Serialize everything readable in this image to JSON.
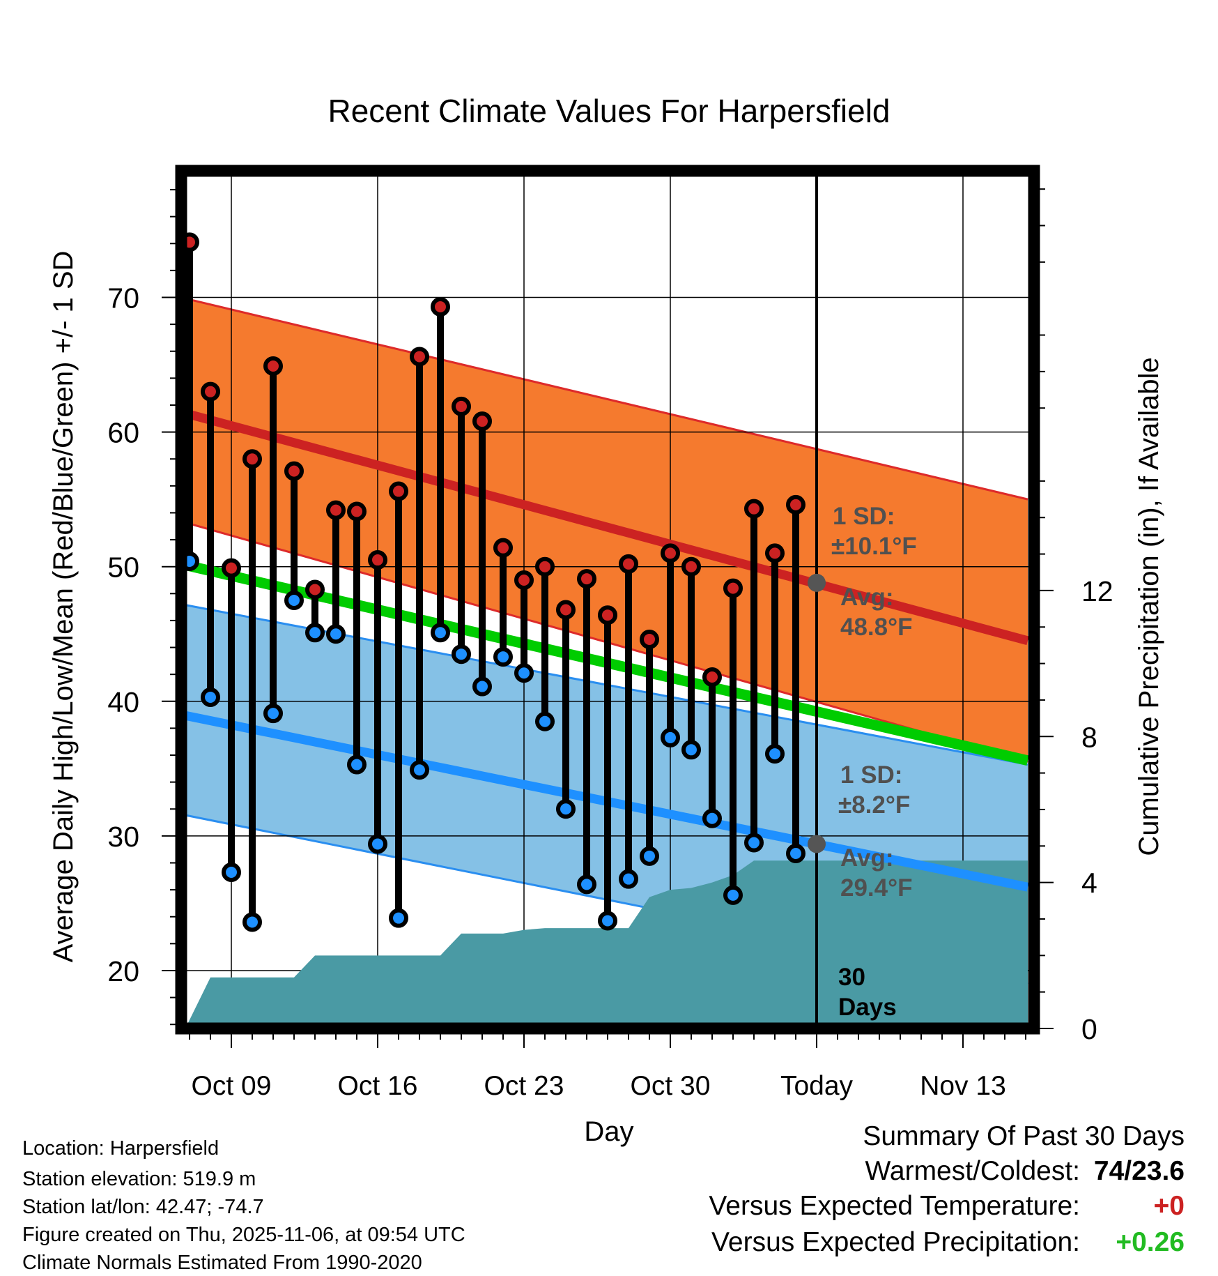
{
  "chart_data": {
    "type": "line",
    "title": "Recent Climate Values For Harpersfield",
    "xlabel": "Day",
    "ylabel_left": "Average Daily High/Low/Mean (Red/Blue/Green) +/- 1 SD",
    "ylabel_right": "Cumulative Precipitation (in), If Available",
    "x_day_index_ref": "Oct 09 = 0",
    "xlim": [
      -2.4,
      38.4
    ],
    "ylim_left": [
      15.7,
      79.4
    ],
    "ylim_right": [
      0,
      23.5
    ],
    "x_tick_positions": [
      0,
      7,
      14,
      21,
      28,
      35
    ],
    "x_tick_labels": [
      "Oct 09",
      "Oct 16",
      "Oct 23",
      "Oct 30",
      "Today",
      "Nov 13"
    ],
    "y_left_ticks": [
      20,
      30,
      40,
      50,
      60,
      70
    ],
    "y_right_ticks": [
      0,
      4,
      8,
      12
    ],
    "days": [
      -2,
      -1,
      0,
      1,
      2,
      3,
      4,
      5,
      6,
      7,
      8,
      9,
      10,
      11,
      12,
      13,
      14,
      15,
      16,
      17,
      18,
      19,
      20,
      21,
      22,
      23,
      24,
      25,
      26,
      27
    ],
    "series": [
      {
        "name": "Daily High",
        "color": "#cc2222",
        "values": [
          74.1,
          63.0,
          49.9,
          58.0,
          64.9,
          57.1,
          48.3,
          54.2,
          54.1,
          50.5,
          55.6,
          65.6,
          69.3,
          61.9,
          60.8,
          51.4,
          49.0,
          50.0,
          46.8,
          49.1,
          46.4,
          50.2,
          44.6,
          51.0,
          50.0,
          41.8,
          48.4,
          54.3,
          51.0,
          54.6
        ]
      },
      {
        "name": "Daily Low",
        "color": "#1e90ff",
        "values": [
          50.4,
          40.3,
          27.3,
          23.6,
          39.1,
          47.5,
          45.1,
          45.0,
          35.3,
          29.4,
          23.9,
          34.9,
          45.1,
          43.5,
          41.1,
          43.3,
          42.1,
          38.5,
          32.0,
          26.4,
          23.7,
          26.8,
          28.5,
          37.3,
          36.4,
          31.3,
          25.6,
          29.5,
          36.1,
          28.7
        ]
      }
    ],
    "normals": {
      "high_avg": {
        "x": [
          -2.7,
          38.1
        ],
        "y": [
          61.6,
          44.5
        ],
        "color": "#cc2222"
      },
      "high_sd_upper": {
        "x": [
          -2.7,
          38.1
        ],
        "y": [
          70.1,
          55.0
        ]
      },
      "high_sd_lower": {
        "x": [
          -2.7,
          38.1
        ],
        "y": [
          53.5,
          35.5
        ]
      },
      "mean_avg": {
        "x": [
          -2.7,
          38.1
        ],
        "y": [
          50.3,
          35.6
        ],
        "color": "#00cc00"
      },
      "low_avg": {
        "x": [
          -2.7,
          38.1
        ],
        "y": [
          39.1,
          26.2
        ],
        "color": "#1e90ff"
      },
      "low_sd_upper": {
        "x": [
          -2.7,
          38.1
        ],
        "y": [
          47.3,
          35.3
        ]
      },
      "low_sd_lower": {
        "x": [
          -2.7,
          38.1
        ],
        "y": [
          31.7,
          19.0
        ]
      },
      "high_band_color": "#f57a2e",
      "low_band_color": "#85c1e6"
    },
    "precip_cumulative": {
      "color": "#4a9aa4",
      "x": [
        -2.7,
        -2.2,
        -1.0,
        1.0,
        3.0,
        4.0,
        6.0,
        9.0,
        10.0,
        11.0,
        12.0,
        13.0,
        14.0,
        15.0,
        18.0,
        19.0,
        20.0,
        21.0,
        22.0,
        23.0,
        24.0,
        25.0,
        26.0,
        27.0,
        38.1
      ],
      "y": [
        0,
        0,
        1.4,
        1.4,
        1.4,
        2.0,
        2.0,
        2.0,
        2.0,
        2.6,
        2.6,
        2.6,
        2.7,
        2.75,
        2.75,
        2.75,
        3.6,
        3.8,
        3.85,
        4.0,
        4.2,
        4.6,
        4.6,
        4.6,
        4.6
      ]
    },
    "today_index": 28,
    "annotations": {
      "high_sd": {
        "line1": "1 SD:",
        "line2": "±10.1°F"
      },
      "high_avg": {
        "line1": "Avg:",
        "line2": "48.8°F",
        "value": 48.8
      },
      "low_sd": {
        "line1": "1 SD:",
        "line2": "±8.2°F"
      },
      "low_avg": {
        "line1": "Avg:",
        "line2": "29.4°F",
        "value": 29.4
      },
      "window": {
        "line1": "30",
        "line2": "Days"
      }
    }
  },
  "info": {
    "location": "Location: Harpersfield",
    "elevation": "Station elevation: 519.9 m",
    "latlon": "Station lat/lon: 42.47; -74.7",
    "created": "Figure created on Thu, 2025-11-06, at 09:54 UTC",
    "normals_period": "Climate Normals Estimated From 1990-2020"
  },
  "summary": {
    "title": "Summary Of Past 30 Days",
    "warmest_label": "Warmest/Coldest:",
    "warmest_value": "74/23.6",
    "temp_label": "Versus Expected Temperature:",
    "temp_value": "+0",
    "temp_color": "#cc2222",
    "precip_label": "Versus Expected Precipitation:",
    "precip_value": "+0.26",
    "precip_color": "#22bb22"
  }
}
